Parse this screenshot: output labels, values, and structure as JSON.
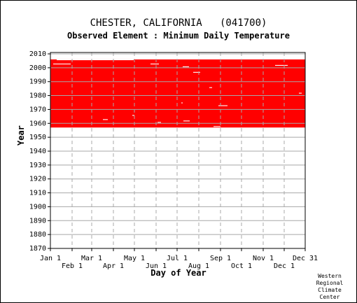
{
  "page": {
    "title": "CHESTER, CALIFORNIA   (041700)",
    "subtitle": "Observed Element : Minimum Daily Temperature",
    "credit": [
      "Western",
      "Regional",
      "Climate",
      "Center"
    ]
  },
  "chart_data": {
    "type": "heatmap",
    "title": "CHESTER, CALIFORNIA   (041700)",
    "subtitle": "Observed Element : Minimum Daily Temperature",
    "xlabel": "Day of Year",
    "ylabel": "Year",
    "xlim": [
      1,
      365
    ],
    "ylim": [
      1870,
      2011
    ],
    "grid": true,
    "yticks": [
      1870,
      1880,
      1890,
      1900,
      1910,
      1920,
      1930,
      1940,
      1950,
      1960,
      1970,
      1980,
      1990,
      2000,
      2010
    ],
    "xticks_top": [
      {
        "label": "Jan 1",
        "day": 1
      },
      {
        "label": "Mar 1",
        "day": 60
      },
      {
        "label": "May 1",
        "day": 121
      },
      {
        "label": "Jul 1",
        "day": 182
      },
      {
        "label": "Sep 1",
        "day": 244
      },
      {
        "label": "Nov 1",
        "day": 305
      },
      {
        "label": "Dec 31",
        "day": 365
      }
    ],
    "xticks_bottom": [
      {
        "label": "Feb 1",
        "day": 32
      },
      {
        "label": "Apr 1",
        "day": 91
      },
      {
        "label": "Jun 1",
        "day": 152
      },
      {
        "label": "Aug 1",
        "day": 213
      },
      {
        "label": "Oct 1",
        "day": 274
      },
      {
        "label": "Dec 1",
        "day": 335
      }
    ],
    "observed_color": "#ff0000",
    "observed_range": {
      "start_year": 1957,
      "end_year": 2005,
      "start_day": 1,
      "end_day": 365
    },
    "missing_data": [
      {
        "year": 2002,
        "day_start": 5,
        "day_end": 30
      },
      {
        "year": 2005,
        "day_start": 10,
        "day_end": 120
      },
      {
        "year": 2002,
        "day_start": 144,
        "day_end": 156
      },
      {
        "year": 2000,
        "day_start": 190,
        "day_end": 199
      },
      {
        "year": 1996,
        "day_start": 205,
        "day_end": 215
      },
      {
        "year": 1985,
        "day_start": 228,
        "day_end": 232
      },
      {
        "year": 1972,
        "day_start": 241,
        "day_end": 254
      },
      {
        "year": 1962,
        "day_start": 76,
        "day_end": 83
      },
      {
        "year": 1961,
        "day_start": 191,
        "day_end": 200
      },
      {
        "year": 1960,
        "day_start": 154,
        "day_end": 159
      },
      {
        "year": 1957,
        "day_start": 234,
        "day_end": 244
      },
      {
        "year": 2001,
        "day_start": 322,
        "day_end": 340
      },
      {
        "year": 1981,
        "day_start": 356,
        "day_end": 360
      },
      {
        "year": 1965,
        "day_start": 118,
        "day_end": 121
      },
      {
        "year": 1974,
        "day_start": 188,
        "day_end": 190
      }
    ]
  }
}
